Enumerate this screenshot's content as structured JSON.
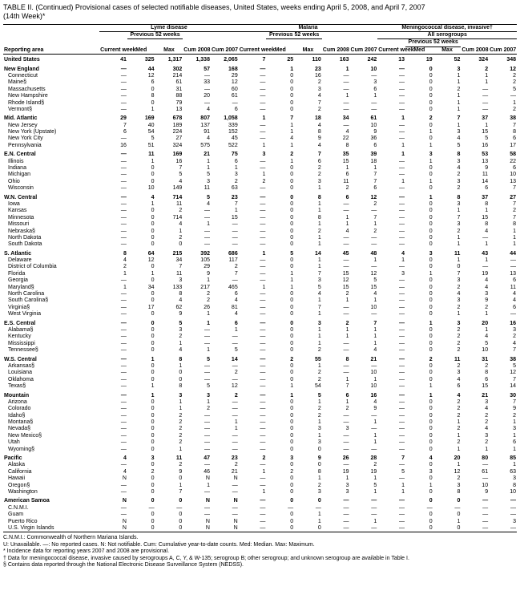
{
  "title_line1": "TABLE II. (Continued) Provisional cases of selected notifiable diseases, United States, weeks ending April 5, 2008, and April 7, 2007",
  "title_line2": "(14th Week)*",
  "diseases": [
    "Lyme disease",
    "Malaria",
    "Meningococcal disease, invasive†"
  ],
  "disease3_sub": "All serogroups",
  "colheads": {
    "area": "Reporting area",
    "current": "Current week",
    "prev": "Previous 52 weeks",
    "med": "Med",
    "max": "Max",
    "cum08": "Cum 2008",
    "cum07": "Cum 2007"
  },
  "rows": [
    {
      "region": true,
      "area": "United States",
      "d": [
        "41",
        "325",
        "1,317",
        "1,338",
        "2,065",
        "7",
        "25",
        "110",
        "163",
        "242",
        "13",
        "19",
        "52",
        "324",
        "348"
      ]
    },
    {
      "region": true,
      "area": "New England",
      "d": [
        "—",
        "44",
        "302",
        "57",
        "168",
        "—",
        "1",
        "23",
        "1",
        "10",
        "—",
        "0",
        "3",
        "2",
        "12"
      ]
    },
    {
      "area": "Connecticut",
      "d": [
        "—",
        "12",
        "214",
        "—",
        "29",
        "—",
        "0",
        "16",
        "—",
        "—",
        "—",
        "0",
        "1",
        "1",
        "2"
      ]
    },
    {
      "area": "Maine§",
      "d": [
        "—",
        "6",
        "61",
        "33",
        "12",
        "—",
        "0",
        "2",
        "—",
        "3",
        "—",
        "0",
        "1",
        "1",
        "2"
      ]
    },
    {
      "area": "Massachusetts",
      "d": [
        "—",
        "0",
        "31",
        "—",
        "60",
        "—",
        "0",
        "3",
        "—",
        "6",
        "—",
        "0",
        "2",
        "—",
        "5"
      ]
    },
    {
      "area": "New Hampshire",
      "d": [
        "—",
        "8",
        "88",
        "20",
        "61",
        "—",
        "0",
        "4",
        "1",
        "1",
        "—",
        "0",
        "1",
        "—",
        "—"
      ]
    },
    {
      "area": "Rhode Island§",
      "d": [
        "—",
        "0",
        "79",
        "—",
        "—",
        "—",
        "0",
        "7",
        "—",
        "—",
        "—",
        "0",
        "1",
        "—",
        "1"
      ]
    },
    {
      "area": "Vermont§",
      "d": [
        "—",
        "1",
        "13",
        "4",
        "6",
        "—",
        "0",
        "2",
        "—",
        "—",
        "—",
        "0",
        "1",
        "—",
        "2"
      ]
    },
    {
      "region": true,
      "area": "Mid. Atlantic",
      "d": [
        "29",
        "169",
        "678",
        "807",
        "1,058",
        "1",
        "7",
        "18",
        "34",
        "61",
        "1",
        "2",
        "7",
        "37",
        "38"
      ]
    },
    {
      "area": "New Jersey",
      "d": [
        "7",
        "40",
        "189",
        "137",
        "339",
        "—",
        "1",
        "4",
        "—",
        "10",
        "—",
        "0",
        "1",
        "1",
        "7"
      ]
    },
    {
      "area": "New York (Upstate)",
      "d": [
        "6",
        "54",
        "224",
        "91",
        "152",
        "—",
        "1",
        "8",
        "4",
        "9",
        "—",
        "1",
        "3",
        "15",
        "8"
      ]
    },
    {
      "area": "New York City",
      "d": [
        "—",
        "5",
        "27",
        "4",
        "45",
        "—",
        "4",
        "9",
        "22",
        "36",
        "—",
        "0",
        "4",
        "5",
        "6"
      ]
    },
    {
      "area": "Pennsylvania",
      "d": [
        "16",
        "51",
        "324",
        "575",
        "522",
        "1",
        "1",
        "4",
        "8",
        "6",
        "1",
        "1",
        "5",
        "16",
        "17"
      ]
    },
    {
      "region": true,
      "area": "E.N. Central",
      "d": [
        "—",
        "11",
        "169",
        "21",
        "75",
        "3",
        "2",
        "7",
        "35",
        "39",
        "1",
        "3",
        "8",
        "53",
        "58"
      ]
    },
    {
      "area": "Illinois",
      "d": [
        "—",
        "1",
        "16",
        "1",
        "6",
        "—",
        "1",
        "6",
        "15",
        "18",
        "—",
        "1",
        "3",
        "13",
        "22"
      ]
    },
    {
      "area": "Indiana",
      "d": [
        "—",
        "0",
        "7",
        "1",
        "1",
        "—",
        "0",
        "2",
        "1",
        "1",
        "—",
        "0",
        "4",
        "9",
        "6"
      ]
    },
    {
      "area": "Michigan",
      "d": [
        "—",
        "0",
        "5",
        "5",
        "3",
        "1",
        "0",
        "2",
        "6",
        "7",
        "—",
        "0",
        "2",
        "11",
        "10"
      ]
    },
    {
      "area": "Ohio",
      "d": [
        "—",
        "0",
        "4",
        "3",
        "2",
        "2",
        "0",
        "3",
        "11",
        "7",
        "1",
        "1",
        "3",
        "14",
        "13"
      ]
    },
    {
      "area": "Wisconsin",
      "d": [
        "—",
        "10",
        "149",
        "11",
        "63",
        "—",
        "0",
        "1",
        "2",
        "6",
        "—",
        "0",
        "2",
        "6",
        "7"
      ]
    },
    {
      "region": true,
      "area": "W.N. Central",
      "d": [
        "—",
        "4",
        "714",
        "5",
        "23",
        "—",
        "0",
        "8",
        "6",
        "12",
        "—",
        "1",
        "8",
        "37",
        "27"
      ]
    },
    {
      "area": "Iowa",
      "d": [
        "—",
        "1",
        "11",
        "4",
        "7",
        "—",
        "0",
        "1",
        "—",
        "2",
        "—",
        "0",
        "3",
        "8",
        "7"
      ]
    },
    {
      "area": "Kansas",
      "d": [
        "—",
        "0",
        "2",
        "—",
        "1",
        "—",
        "0",
        "1",
        "—",
        "—",
        "—",
        "0",
        "1",
        "1",
        "2"
      ]
    },
    {
      "area": "Minnesota",
      "d": [
        "—",
        "0",
        "714",
        "—",
        "15",
        "—",
        "0",
        "8",
        "1",
        "7",
        "—",
        "0",
        "7",
        "15",
        "7"
      ]
    },
    {
      "area": "Missouri",
      "d": [
        "—",
        "0",
        "4",
        "1",
        "—",
        "—",
        "0",
        "1",
        "1",
        "1",
        "—",
        "0",
        "3",
        "8",
        "8"
      ]
    },
    {
      "area": "Nebraska§",
      "d": [
        "—",
        "0",
        "1",
        "—",
        "—",
        "—",
        "0",
        "2",
        "4",
        "2",
        "—",
        "0",
        "2",
        "4",
        "1"
      ]
    },
    {
      "area": "North Dakota",
      "d": [
        "—",
        "0",
        "2",
        "—",
        "—",
        "—",
        "0",
        "1",
        "—",
        "—",
        "—",
        "0",
        "1",
        "—",
        "1"
      ]
    },
    {
      "area": "South Dakota",
      "d": [
        "—",
        "0",
        "0",
        "—",
        "—",
        "—",
        "0",
        "1",
        "—",
        "—",
        "—",
        "0",
        "1",
        "1",
        "1"
      ]
    },
    {
      "region": true,
      "area": "S. Atlantic",
      "d": [
        "8",
        "64",
        "215",
        "392",
        "686",
        "1",
        "5",
        "14",
        "45",
        "48",
        "4",
        "3",
        "11",
        "43",
        "44"
      ]
    },
    {
      "area": "Delaware",
      "d": [
        "4",
        "12",
        "34",
        "105",
        "117",
        "—",
        "0",
        "1",
        "—",
        "1",
        "1",
        "0",
        "1",
        "1",
        "—"
      ]
    },
    {
      "area": "District of Columbia",
      "d": [
        "2",
        "0",
        "7",
        "29",
        "2",
        "—",
        "0",
        "1",
        "—",
        "—",
        "—",
        "0",
        "0",
        "—",
        "—"
      ]
    },
    {
      "area": "Florida",
      "d": [
        "1",
        "1",
        "11",
        "9",
        "7",
        "—",
        "1",
        "7",
        "15",
        "12",
        "3",
        "1",
        "7",
        "19",
        "13"
      ]
    },
    {
      "area": "Georgia",
      "d": [
        "—",
        "0",
        "3",
        "1",
        "—",
        "—",
        "1",
        "3",
        "12",
        "5",
        "—",
        "0",
        "3",
        "4",
        "6"
      ]
    },
    {
      "area": "Maryland§",
      "d": [
        "1",
        "34",
        "133",
        "217",
        "465",
        "1",
        "1",
        "5",
        "15",
        "15",
        "—",
        "0",
        "2",
        "4",
        "11"
      ]
    },
    {
      "area": "North Carolina",
      "d": [
        "—",
        "0",
        "8",
        "2",
        "6",
        "—",
        "0",
        "4",
        "2",
        "4",
        "—",
        "0",
        "4",
        "3",
        "4"
      ]
    },
    {
      "area": "South Carolina§",
      "d": [
        "—",
        "0",
        "4",
        "2",
        "4",
        "—",
        "0",
        "1",
        "1",
        "1",
        "—",
        "0",
        "3",
        "9",
        "4"
      ]
    },
    {
      "area": "Virginia§",
      "d": [
        "—",
        "17",
        "62",
        "26",
        "81",
        "—",
        "0",
        "7",
        "—",
        "10",
        "—",
        "0",
        "2",
        "2",
        "6"
      ]
    },
    {
      "area": "West Virginia",
      "d": [
        "—",
        "0",
        "9",
        "1",
        "4",
        "—",
        "0",
        "1",
        "—",
        "—",
        "—",
        "0",
        "1",
        "1",
        "—"
      ]
    },
    {
      "region": true,
      "area": "E.S. Central",
      "d": [
        "—",
        "0",
        "5",
        "1",
        "6",
        "—",
        "0",
        "3",
        "2",
        "7",
        "—",
        "1",
        "3",
        "20",
        "16"
      ]
    },
    {
      "area": "Alabama§",
      "d": [
        "—",
        "0",
        "3",
        "—",
        "1",
        "—",
        "0",
        "1",
        "1",
        "1",
        "—",
        "0",
        "2",
        "1",
        "3"
      ]
    },
    {
      "area": "Kentucky",
      "d": [
        "—",
        "0",
        "2",
        "—",
        "—",
        "—",
        "0",
        "1",
        "1",
        "1",
        "—",
        "0",
        "2",
        "4",
        "2"
      ]
    },
    {
      "area": "Mississippi",
      "d": [
        "—",
        "0",
        "1",
        "—",
        "—",
        "—",
        "0",
        "1",
        "—",
        "1",
        "—",
        "0",
        "2",
        "5",
        "4"
      ]
    },
    {
      "area": "Tennessee§",
      "d": [
        "—",
        "0",
        "4",
        "1",
        "5",
        "—",
        "0",
        "2",
        "—",
        "4",
        "—",
        "0",
        "2",
        "10",
        "7"
      ]
    },
    {
      "region": true,
      "area": "W.S. Central",
      "d": [
        "—",
        "1",
        "8",
        "5",
        "14",
        "—",
        "2",
        "55",
        "8",
        "21",
        "—",
        "2",
        "11",
        "31",
        "38"
      ]
    },
    {
      "area": "Arkansas§",
      "d": [
        "—",
        "0",
        "1",
        "—",
        "—",
        "—",
        "0",
        "1",
        "—",
        "—",
        "—",
        "0",
        "2",
        "2",
        "5"
      ]
    },
    {
      "area": "Louisiana",
      "d": [
        "—",
        "0",
        "0",
        "—",
        "2",
        "—",
        "0",
        "2",
        "—",
        "10",
        "—",
        "0",
        "3",
        "8",
        "12"
      ]
    },
    {
      "area": "Oklahoma",
      "d": [
        "—",
        "0",
        "0",
        "—",
        "—",
        "—",
        "0",
        "2",
        "1",
        "1",
        "—",
        "0",
        "4",
        "6",
        "7"
      ]
    },
    {
      "area": "Texas§",
      "d": [
        "—",
        "1",
        "8",
        "5",
        "12",
        "—",
        "1",
        "54",
        "7",
        "10",
        "—",
        "1",
        "6",
        "15",
        "14"
      ]
    },
    {
      "region": true,
      "area": "Mountain",
      "d": [
        "—",
        "1",
        "3",
        "3",
        "2",
        "—",
        "1",
        "5",
        "6",
        "16",
        "—",
        "1",
        "4",
        "21",
        "30"
      ]
    },
    {
      "area": "Arizona",
      "d": [
        "—",
        "0",
        "1",
        "1",
        "—",
        "—",
        "0",
        "1",
        "1",
        "4",
        "—",
        "0",
        "2",
        "3",
        "7"
      ]
    },
    {
      "area": "Colorado",
      "d": [
        "—",
        "0",
        "1",
        "2",
        "—",
        "—",
        "0",
        "2",
        "2",
        "9",
        "—",
        "0",
        "2",
        "4",
        "9"
      ]
    },
    {
      "area": "Idaho§",
      "d": [
        "—",
        "0",
        "2",
        "—",
        "—",
        "—",
        "0",
        "2",
        "—",
        "—",
        "—",
        "0",
        "2",
        "2",
        "2"
      ]
    },
    {
      "area": "Montana§",
      "d": [
        "—",
        "0",
        "2",
        "—",
        "1",
        "—",
        "0",
        "1",
        "—",
        "1",
        "—",
        "0",
        "1",
        "2",
        "1"
      ]
    },
    {
      "area": "Nevada§",
      "d": [
        "—",
        "0",
        "2",
        "—",
        "1",
        "—",
        "0",
        "3",
        "3",
        "—",
        "—",
        "0",
        "2",
        "4",
        "3"
      ]
    },
    {
      "area": "New Mexico§",
      "d": [
        "—",
        "0",
        "2",
        "—",
        "—",
        "—",
        "0",
        "1",
        "—",
        "1",
        "—",
        "0",
        "1",
        "3",
        "1"
      ]
    },
    {
      "area": "Utah",
      "d": [
        "—",
        "0",
        "2",
        "—",
        "—",
        "—",
        "0",
        "3",
        "—",
        "1",
        "—",
        "0",
        "2",
        "2",
        "6"
      ]
    },
    {
      "area": "Wyoming§",
      "d": [
        "—",
        "0",
        "1",
        "—",
        "—",
        "—",
        "0",
        "0",
        "—",
        "—",
        "—",
        "0",
        "1",
        "1",
        "1"
      ]
    },
    {
      "region": true,
      "area": "Pacific",
      "d": [
        "4",
        "3",
        "11",
        "47",
        "23",
        "2",
        "3",
        "9",
        "26",
        "28",
        "7",
        "4",
        "20",
        "80",
        "85"
      ]
    },
    {
      "area": "Alaska",
      "d": [
        "—",
        "0",
        "2",
        "—",
        "2",
        "—",
        "0",
        "0",
        "—",
        "2",
        "—",
        "0",
        "1",
        "—",
        "1"
      ]
    },
    {
      "area": "California",
      "d": [
        "4",
        "2",
        "9",
        "46",
        "21",
        "1",
        "2",
        "8",
        "19",
        "19",
        "5",
        "3",
        "12",
        "61",
        "63"
      ]
    },
    {
      "area": "Hawaii",
      "d": [
        "N",
        "0",
        "0",
        "N",
        "N",
        "—",
        "0",
        "1",
        "1",
        "1",
        "—",
        "0",
        "2",
        "—",
        "3"
      ]
    },
    {
      "area": "Oregon§",
      "d": [
        "—",
        "0",
        "1",
        "1",
        "—",
        "—",
        "0",
        "2",
        "3",
        "5",
        "1",
        "1",
        "3",
        "10",
        "8"
      ]
    },
    {
      "area": "Washington",
      "d": [
        "—",
        "0",
        "7",
        "—",
        "—",
        "1",
        "0",
        "3",
        "3",
        "1",
        "1",
        "0",
        "8",
        "9",
        "10"
      ]
    },
    {
      "region": true,
      "area": "American Samoa",
      "d": [
        "N",
        "0",
        "0",
        "N",
        "N",
        "—",
        "0",
        "0",
        "—",
        "—",
        "—",
        "0",
        "0",
        "—",
        "—"
      ]
    },
    {
      "area": "C.N.M.I.",
      "d": [
        "—",
        "—",
        "—",
        "—",
        "—",
        "—",
        "—",
        "—",
        "—",
        "—",
        "—",
        "—",
        "—",
        "—",
        "—"
      ]
    },
    {
      "area": "Guam",
      "d": [
        "—",
        "0",
        "0",
        "—",
        "—",
        "—",
        "0",
        "1",
        "—",
        "—",
        "—",
        "0",
        "0",
        "—",
        "—"
      ]
    },
    {
      "area": "Puerto Rico",
      "d": [
        "N",
        "0",
        "0",
        "N",
        "N",
        "—",
        "0",
        "1",
        "—",
        "1",
        "—",
        "0",
        "1",
        "—",
        "3"
      ]
    },
    {
      "area": "U.S. Virgin Islands",
      "d": [
        "N",
        "0",
        "0",
        "N",
        "N",
        "—",
        "0",
        "0",
        "—",
        "—",
        "—",
        "0",
        "0",
        "—",
        "—"
      ]
    }
  ],
  "footnotes": [
    "C.N.M.I.: Commonwealth of Northern Mariana Islands.",
    "U: Unavailable.   —: No reported cases.   N: Not notifiable.   Cum: Cumulative year-to-date counts.   Med: Median.   Max: Maximum.",
    "* Incidence data for reporting years 2007 and 2008 are provisional.",
    "† Data for meningococcal disease, invasive caused by serogroups A, C, Y, & W-135; serogroup B; other serogroup; and unknown serogroup are available in Table I.",
    "§ Contains data reported through the National Electronic Disease Surveillance System (NEDSS)."
  ]
}
